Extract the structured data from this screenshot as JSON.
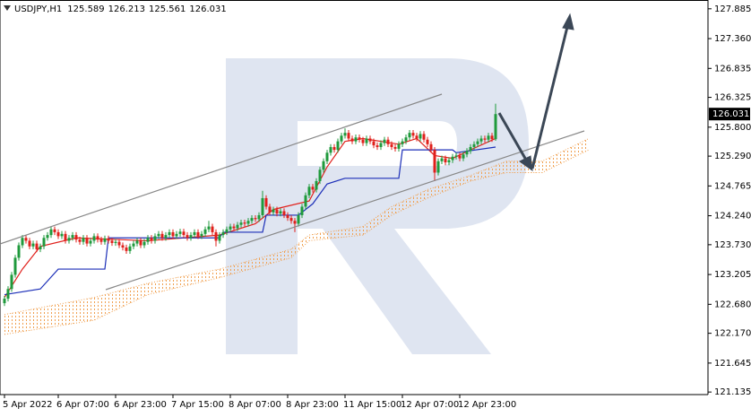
{
  "chart_data": {
    "type": "candlestick",
    "symbol": "USDJPY,H1",
    "categories": [
      "5 Apr 2022",
      null,
      null,
      null,
      null,
      null,
      null,
      null,
      null,
      null,
      null,
      null,
      null,
      null,
      null,
      "6 Apr 07:00",
      null,
      null,
      null,
      null,
      null,
      null,
      null,
      null,
      null,
      null,
      null,
      null,
      null,
      null,
      null,
      "6 Apr 23:00",
      null,
      null,
      null,
      null,
      null,
      null,
      null,
      null,
      null,
      null,
      null,
      null,
      null,
      null,
      null,
      "7 Apr 15:00",
      null,
      null,
      null,
      null,
      null,
      null,
      null,
      null,
      null,
      null,
      null,
      null,
      null,
      null,
      null,
      "8 Apr 07:00",
      null,
      null,
      null,
      null,
      null,
      null,
      null,
      null,
      null,
      null,
      null,
      null,
      null,
      null,
      null,
      "8 Apr 23:00",
      null,
      null,
      null,
      null,
      null,
      null,
      null,
      null,
      null,
      null,
      null,
      null,
      null,
      null,
      null,
      "11 Apr 15:00",
      null,
      null,
      null,
      null,
      null,
      null,
      null,
      null,
      null,
      null,
      null,
      null,
      null,
      null,
      null,
      "12 Apr 07:00",
      null,
      null,
      null,
      null,
      null,
      null,
      null,
      null,
      null,
      null,
      null,
      null,
      null,
      null,
      null,
      "12 Apr 23:00",
      null,
      null,
      null,
      null,
      null,
      null,
      null,
      null,
      null,
      null
    ],
    "open": [
      122.7,
      122.78,
      122.95,
      123.2,
      123.5,
      123.72,
      123.85,
      123.8,
      123.7,
      123.75,
      123.65,
      123.7,
      123.85,
      123.9,
      124.0,
      123.95,
      123.88,
      123.92,
      123.8,
      123.85,
      123.9,
      123.82,
      123.78,
      123.85,
      123.75,
      123.8,
      123.88,
      123.82,
      123.78,
      123.84,
      123.8,
      123.76,
      123.78,
      123.72,
      123.68,
      123.62,
      123.7,
      123.75,
      123.8,
      123.72,
      123.78,
      123.85,
      123.8,
      123.88,
      123.92,
      123.85,
      123.9,
      123.95,
      123.88,
      123.92,
      123.96,
      123.9,
      123.85,
      123.9,
      123.95,
      123.88,
      123.92,
      124.0,
      124.05,
      123.95,
      123.8,
      123.9,
      123.95,
      124.0,
      124.05,
      124.02,
      124.08,
      124.12,
      124.1,
      124.15,
      124.2,
      124.18,
      124.25,
      124.55,
      124.4,
      124.3,
      124.35,
      124.28,
      124.32,
      124.25,
      124.2,
      124.15,
      124.1,
      124.25,
      124.4,
      124.6,
      124.75,
      124.7,
      124.85,
      125.05,
      125.2,
      125.35,
      125.45,
      125.4,
      125.55,
      125.65,
      125.7,
      125.6,
      125.55,
      125.62,
      125.58,
      125.52,
      125.6,
      125.55,
      125.48,
      125.45,
      125.52,
      125.58,
      125.5,
      125.45,
      125.42,
      125.5,
      125.55,
      125.62,
      125.7,
      125.65,
      125.6,
      125.68,
      125.58,
      125.5,
      125.4,
      125.0,
      125.2,
      125.25,
      125.18,
      125.22,
      125.28,
      125.3,
      125.25,
      125.32,
      125.38,
      125.45,
      125.5,
      125.55,
      125.6,
      125.58,
      125.65,
      125.589
    ],
    "high": [
      122.83,
      123.0,
      123.25,
      123.55,
      123.77,
      123.9,
      123.9,
      123.85,
      123.8,
      123.8,
      123.75,
      123.9,
      123.95,
      124.05,
      124.05,
      124.0,
      123.97,
      123.97,
      123.9,
      123.95,
      123.95,
      123.87,
      123.9,
      123.9,
      123.85,
      123.93,
      123.93,
      123.87,
      123.89,
      123.89,
      123.85,
      123.83,
      123.83,
      123.77,
      123.73,
      123.75,
      123.8,
      123.85,
      123.85,
      123.83,
      123.9,
      123.9,
      123.93,
      123.97,
      123.97,
      123.95,
      124.0,
      124.0,
      123.97,
      124.01,
      124.01,
      123.95,
      123.95,
      124.0,
      124.0,
      123.97,
      124.05,
      124.15,
      124.1,
      124.0,
      123.95,
      124.0,
      124.05,
      124.1,
      124.1,
      124.13,
      124.17,
      124.17,
      124.2,
      124.25,
      124.25,
      124.3,
      124.68,
      124.6,
      124.45,
      124.4,
      124.4,
      124.37,
      124.37,
      124.3,
      124.25,
      124.2,
      124.3,
      124.45,
      124.65,
      124.8,
      124.8,
      124.9,
      125.1,
      125.25,
      125.4,
      125.5,
      125.5,
      125.6,
      125.7,
      125.78,
      125.75,
      125.65,
      125.67,
      125.67,
      125.63,
      125.65,
      125.65,
      125.6,
      125.53,
      125.57,
      125.63,
      125.63,
      125.55,
      125.5,
      125.55,
      125.6,
      125.67,
      125.75,
      125.75,
      125.7,
      125.73,
      125.73,
      125.63,
      125.55,
      125.45,
      125.25,
      125.3,
      125.3,
      125.27,
      125.33,
      125.35,
      125.35,
      125.37,
      125.43,
      125.5,
      125.55,
      125.6,
      125.65,
      125.65,
      125.7,
      125.7,
      126.213
    ],
    "low": [
      122.65,
      122.73,
      122.9,
      123.15,
      123.45,
      123.67,
      123.75,
      123.65,
      123.65,
      123.6,
      123.6,
      123.65,
      123.8,
      123.85,
      123.9,
      123.83,
      123.83,
      123.75,
      123.75,
      123.8,
      123.77,
      123.73,
      123.73,
      123.7,
      123.7,
      123.75,
      123.77,
      123.73,
      123.73,
      123.75,
      123.71,
      123.71,
      123.67,
      123.63,
      123.57,
      123.57,
      123.65,
      123.7,
      123.67,
      123.67,
      123.73,
      123.75,
      123.75,
      123.83,
      123.8,
      123.8,
      123.85,
      123.83,
      123.83,
      123.87,
      123.85,
      123.8,
      123.8,
      123.85,
      123.83,
      123.83,
      123.87,
      123.95,
      123.9,
      123.7,
      123.75,
      123.85,
      123.9,
      123.95,
      123.97,
      123.97,
      124.03,
      124.05,
      124.05,
      124.1,
      124.13,
      124.13,
      124.2,
      124.35,
      124.25,
      124.25,
      124.23,
      124.23,
      124.2,
      124.15,
      124.1,
      123.95,
      124.05,
      124.2,
      124.35,
      124.55,
      124.65,
      124.65,
      124.8,
      125.0,
      125.15,
      125.3,
      125.35,
      125.35,
      125.5,
      125.6,
      125.55,
      125.5,
      125.5,
      125.53,
      125.47,
      125.47,
      125.5,
      125.43,
      125.4,
      125.4,
      125.47,
      125.45,
      125.4,
      125.37,
      125.37,
      125.45,
      125.5,
      125.57,
      125.6,
      125.55,
      125.55,
      125.53,
      125.45,
      125.35,
      124.85,
      124.95,
      125.15,
      125.13,
      125.13,
      125.17,
      125.23,
      125.2,
      125.2,
      125.27,
      125.33,
      125.4,
      125.45,
      125.5,
      125.53,
      125.53,
      125.54,
      125.561
    ],
    "close": [
      122.78,
      122.95,
      123.2,
      123.5,
      123.72,
      123.85,
      123.8,
      123.7,
      123.75,
      123.65,
      123.7,
      123.85,
      123.9,
      124.0,
      123.95,
      123.88,
      123.92,
      123.8,
      123.85,
      123.9,
      123.82,
      123.78,
      123.85,
      123.75,
      123.8,
      123.88,
      123.82,
      123.78,
      123.84,
      123.8,
      123.76,
      123.78,
      123.72,
      123.68,
      123.62,
      123.7,
      123.75,
      123.8,
      123.72,
      123.78,
      123.85,
      123.8,
      123.88,
      123.92,
      123.85,
      123.9,
      123.95,
      123.88,
      123.92,
      123.96,
      123.9,
      123.85,
      123.9,
      123.95,
      123.88,
      123.92,
      124.0,
      124.05,
      123.95,
      123.8,
      123.9,
      123.95,
      124.0,
      124.05,
      124.02,
      124.08,
      124.12,
      124.1,
      124.15,
      124.2,
      124.18,
      124.25,
      124.55,
      124.4,
      124.3,
      124.35,
      124.28,
      124.32,
      124.25,
      124.2,
      124.15,
      124.1,
      124.25,
      124.4,
      124.6,
      124.75,
      124.7,
      124.85,
      125.05,
      125.2,
      125.35,
      125.45,
      125.4,
      125.55,
      125.65,
      125.7,
      125.6,
      125.55,
      125.62,
      125.58,
      125.52,
      125.6,
      125.55,
      125.48,
      125.45,
      125.52,
      125.58,
      125.5,
      125.45,
      125.42,
      125.5,
      125.55,
      125.62,
      125.7,
      125.65,
      125.6,
      125.68,
      125.58,
      125.5,
      125.4,
      125.0,
      125.2,
      125.25,
      125.18,
      125.22,
      125.28,
      125.3,
      125.25,
      125.32,
      125.38,
      125.45,
      125.5,
      125.55,
      125.6,
      125.58,
      125.65,
      125.59,
      126.031
    ],
    "up_color": "#1f9a3c",
    "down_color": "#e0201b",
    "lines": [
      {
        "color": "#e0201b",
        "x": [
          0,
          5,
          10,
          20,
          40,
          60,
          70,
          75,
          85,
          90,
          95,
          100,
          110,
          115,
          120,
          125,
          130,
          137
        ],
        "values": [
          122.8,
          123.3,
          123.7,
          123.85,
          123.8,
          123.9,
          124.1,
          124.35,
          124.5,
          125.1,
          125.55,
          125.6,
          125.5,
          125.6,
          125.3,
          125.25,
          125.4,
          125.6
        ]
      },
      {
        "color": "#1c2fb8",
        "x": [
          0,
          10,
          15,
          28,
          29,
          60,
          61,
          72,
          73,
          82,
          86,
          90,
          95,
          110,
          111,
          125,
          126,
          137
        ],
        "values": [
          122.85,
          122.95,
          123.3,
          123.3,
          123.85,
          123.85,
          123.95,
          123.95,
          124.25,
          124.25,
          124.45,
          124.8,
          124.9,
          124.9,
          125.4,
          125.4,
          125.35,
          125.45
        ]
      }
    ],
    "cloud": {
      "color": "#f0a050",
      "x": [
        0,
        25,
        40,
        60,
        80,
        85,
        100,
        108,
        118,
        130,
        140,
        150,
        163
      ],
      "upper": [
        122.5,
        122.8,
        123.05,
        123.3,
        123.65,
        123.9,
        124.05,
        124.4,
        124.7,
        124.95,
        125.2,
        125.2,
        125.6
      ],
      "lower": [
        122.15,
        122.4,
        122.85,
        123.15,
        123.5,
        123.8,
        123.9,
        124.25,
        124.55,
        124.85,
        125.0,
        125.0,
        125.4
      ]
    },
    "ylim": [
      121.09,
      128.04
    ],
    "yticks": [
      127.885,
      {
        "value": 127.36,
        "label": "127.360"
      },
      126.835,
      126.325,
      {
        "value": 125.8,
        "label": "125.800"
      },
      {
        "value": 125.29,
        "label": "125.290"
      },
      124.765,
      {
        "value": 124.24,
        "label": "124.240"
      },
      {
        "value": 123.73,
        "label": "123.730"
      },
      123.205,
      {
        "value": 122.68,
        "label": "122.680"
      },
      {
        "value": 122.17,
        "label": "122.170"
      },
      121.645,
      121.135
    ],
    "grid": false
  }
}
